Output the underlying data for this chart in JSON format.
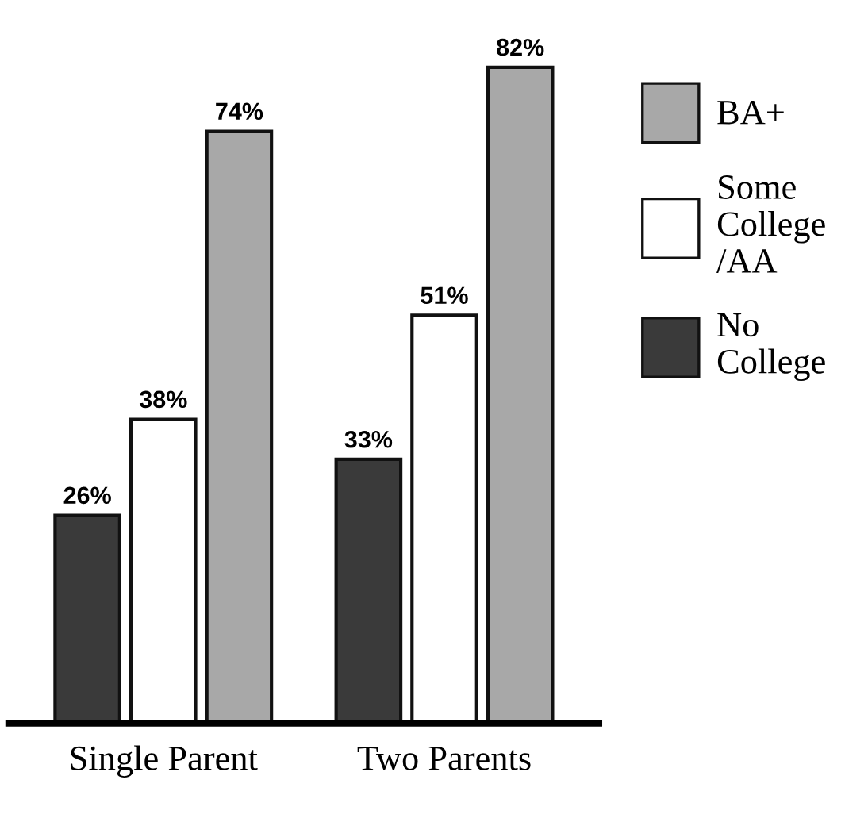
{
  "chart_data": {
    "type": "bar",
    "categories": [
      "Single Parent",
      "Two Parents"
    ],
    "series": [
      {
        "name": "No College",
        "color": "#3a3a3a",
        "values": [
          26,
          33
        ],
        "value_labels": [
          "26%",
          "33%"
        ]
      },
      {
        "name": "Some College /AA",
        "color": "#ffffff",
        "values": [
          38,
          51
        ],
        "value_labels": [
          "38%",
          "51%"
        ]
      },
      {
        "name": "BA+",
        "color": "#a8a8a8",
        "values": [
          74,
          82
        ],
        "value_labels": [
          "74%",
          "82%"
        ]
      }
    ],
    "legend": "right",
    "grid": false
  }
}
